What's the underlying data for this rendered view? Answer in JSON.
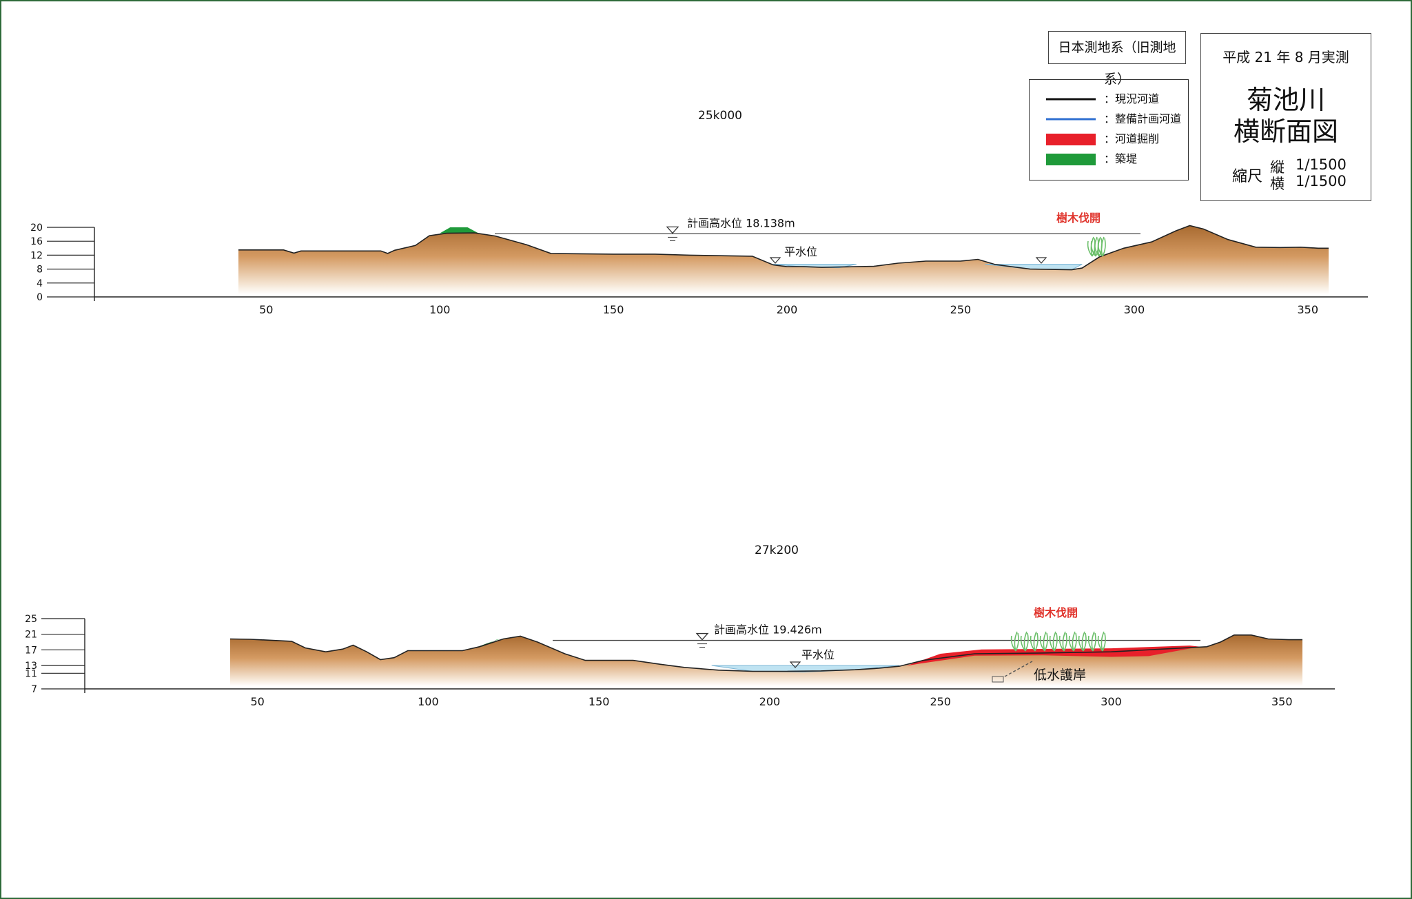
{
  "datum_label": "日本測地系（旧測地系）",
  "legend": [
    {
      "label": "：現況河道",
      "color": "#111111",
      "kind": "line"
    },
    {
      "label": "：整備計画河道",
      "color": "#2f6fd0",
      "kind": "line"
    },
    {
      "label": "：河道掘削",
      "color": "#e8202a",
      "kind": "block"
    },
    {
      "label": "：築堤",
      "color": "#1f9a3a",
      "kind": "block"
    }
  ],
  "title_block": {
    "survey_date": "平成 21 年 8 月実測",
    "river_name": "菊池川",
    "drawing_title": "横断面図",
    "scale_label": "縮尺",
    "vertical_label": "縦",
    "vertical_scale": "1/1500",
    "horizontal_label": "横",
    "horizontal_scale": "1/1500"
  },
  "colors": {
    "ground": "#b8773a",
    "ground_fade": "#ffffff",
    "water": "#bfe3f2",
    "excavation": "#e8202a",
    "embankment": "#1f9a3a",
    "annotation_red": "#e0342c",
    "vegetation": "#6cbf6a"
  },
  "sections": [
    {
      "id": "25k000",
      "label": "25k000",
      "y_ticks": [
        0,
        4,
        8,
        12,
        16,
        20
      ],
      "x_ticks": [
        50,
        100,
        150,
        200,
        250,
        300,
        350
      ],
      "plan_hwl_label": "計画高水位 18.138m",
      "plan_hwl": 18.138,
      "normal_water_label": "平水位",
      "normal_water": 9.0,
      "tree_clearing_label": "樹木伐開",
      "profile": [
        [
          42,
          13.5
        ],
        [
          55,
          13.5
        ],
        [
          58,
          12.6
        ],
        [
          60,
          13.2
        ],
        [
          83,
          13.2
        ],
        [
          85,
          12.5
        ],
        [
          87,
          13.4
        ],
        [
          93,
          14.8
        ],
        [
          97,
          17.6
        ],
        [
          102,
          18.3
        ],
        [
          110,
          18.4
        ],
        [
          116,
          17.5
        ],
        [
          125,
          15
        ],
        [
          132,
          12.5
        ],
        [
          150,
          12.3
        ],
        [
          162,
          12.3
        ],
        [
          172,
          12.0
        ],
        [
          190,
          11.7
        ],
        [
          196,
          9.2
        ],
        [
          200,
          8.7
        ],
        [
          205,
          8.7
        ],
        [
          210,
          8.5
        ],
        [
          225,
          8.8
        ],
        [
          232,
          9.7
        ],
        [
          240,
          10.3
        ],
        [
          250,
          10.3
        ],
        [
          255,
          10.8
        ],
        [
          260,
          9.3
        ],
        [
          270,
          8.0
        ],
        [
          282,
          7.8
        ],
        [
          285,
          8.3
        ],
        [
          290,
          11.5
        ],
        [
          297,
          14.0
        ],
        [
          305,
          15.8
        ],
        [
          312,
          19.0
        ],
        [
          316,
          20.5
        ],
        [
          320,
          19.5
        ],
        [
          327,
          16.5
        ],
        [
          335,
          14.3
        ],
        [
          342,
          14.2
        ],
        [
          348,
          14.3
        ],
        [
          353,
          14.0
        ],
        [
          356,
          14.0
        ]
      ],
      "embankments": [
        [
          [
            100,
            18.3
          ],
          [
            103,
            20.0
          ],
          [
            108,
            20.0
          ],
          [
            111,
            18.4
          ]
        ]
      ],
      "excavations": [],
      "water": [
        [
          [
            196,
            9.4
          ],
          [
            205,
            8.6
          ],
          [
            215,
            8.4
          ],
          [
            220,
            9.4
          ]
        ],
        [
          [
            257,
            9.4
          ],
          [
            270,
            8.0
          ],
          [
            282,
            7.8
          ],
          [
            285,
            9.4
          ]
        ]
      ]
    },
    {
      "id": "27k200",
      "label": "27k200",
      "y_ticks": [
        7,
        11,
        13,
        17,
        21,
        25
      ],
      "x_ticks": [
        50,
        100,
        150,
        200,
        250,
        300,
        350
      ],
      "plan_hwl_label": "計画高水位 19.426m",
      "plan_hwl": 19.426,
      "normal_water_label": "平水位",
      "normal_water": 13.0,
      "tree_clearing_label": "樹木伐開",
      "revetment_label": "低水護岸",
      "profile": [
        [
          42,
          19.8
        ],
        [
          48,
          19.7
        ],
        [
          60,
          19.2
        ],
        [
          64,
          17.5
        ],
        [
          70,
          16.5
        ],
        [
          75,
          17.2
        ],
        [
          78,
          18.2
        ],
        [
          82,
          16.5
        ],
        [
          86,
          14.5
        ],
        [
          90,
          15
        ],
        [
          94,
          16.8
        ],
        [
          110,
          16.8
        ],
        [
          115,
          17.8
        ],
        [
          122,
          19.8
        ],
        [
          127,
          20.5
        ],
        [
          132,
          19.0
        ],
        [
          140,
          16.0
        ],
        [
          146,
          14.3
        ],
        [
          160,
          14.3
        ],
        [
          168,
          13.3
        ],
        [
          175,
          12.5
        ],
        [
          185,
          11.8
        ],
        [
          195,
          11.5
        ],
        [
          205,
          11.5
        ],
        [
          215,
          11.6
        ],
        [
          225,
          11.9
        ],
        [
          232,
          12.3
        ],
        [
          238,
          12.8
        ],
        [
          245,
          14.3
        ],
        [
          260,
          16.0
        ],
        [
          280,
          16.2
        ],
        [
          300,
          16.5
        ],
        [
          315,
          17.2
        ],
        [
          328,
          17.8
        ],
        [
          332,
          19.0
        ],
        [
          336,
          20.8
        ],
        [
          341,
          20.8
        ],
        [
          346,
          19.8
        ],
        [
          352,
          19.6
        ],
        [
          356,
          19.6
        ]
      ],
      "embankments": [
        [
          [
            114,
            17.6
          ],
          [
            117,
            18.6
          ],
          [
            121,
            19.8
          ],
          [
            124,
            20.4
          ],
          [
            120,
            19.6
          ],
          [
            116,
            17.9
          ]
        ]
      ],
      "excavations": [
        [
          [
            240,
            12.9
          ],
          [
            250,
            16.0
          ],
          [
            262,
            17.1
          ],
          [
            300,
            17.4
          ],
          [
            323,
            18.1
          ],
          [
            326,
            17.8
          ],
          [
            311,
            15.4
          ],
          [
            300,
            15.2
          ],
          [
            280,
            15.6
          ],
          [
            260,
            15.5
          ],
          [
            244,
            13.5
          ]
        ]
      ],
      "water": [
        [
          [
            183,
            13.0
          ],
          [
            195,
            11.5
          ],
          [
            210,
            11.3
          ],
          [
            225,
            11.9
          ],
          [
            238,
            13.0
          ]
        ]
      ]
    }
  ]
}
